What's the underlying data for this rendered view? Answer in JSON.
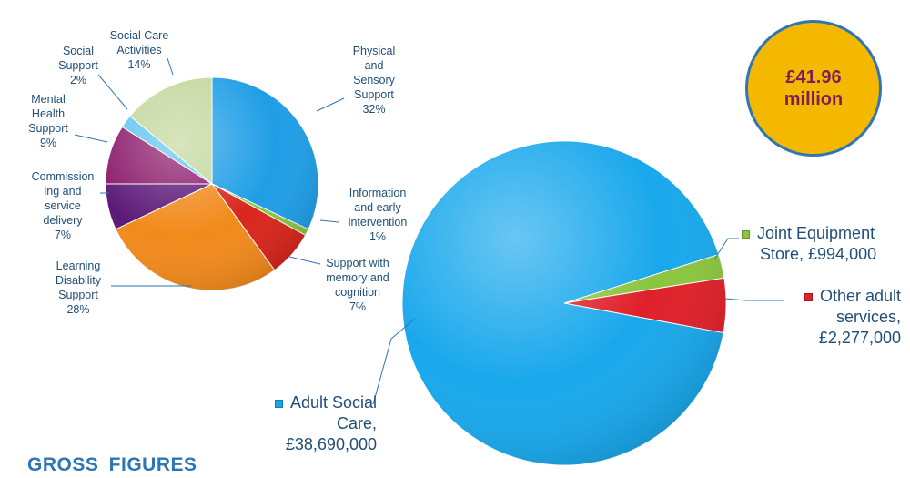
{
  "total": {
    "amount": "£41.96",
    "unit": "million"
  },
  "footer_title": "GROSS  FIGURES",
  "chart_data": [
    {
      "type": "pie",
      "slices": [
        {
          "label": [
            "Physical",
            "and",
            "Sensory",
            "Support",
            "32%"
          ],
          "value": 32,
          "color": "#1f9ee6"
        },
        {
          "label": [
            "Information",
            "and early",
            "intervention",
            "1%"
          ],
          "value": 1,
          "color": "#8bc53f"
        },
        {
          "label": [
            "Support with",
            "memory and",
            "cognition",
            "7%"
          ],
          "value": 7,
          "color": "#d9261c"
        },
        {
          "label": [
            "Learning",
            "Disability",
            "Support",
            "28%"
          ],
          "value": 28,
          "color": "#f28a1c"
        },
        {
          "label": [
            "Commission",
            "ing and",
            "service",
            "delivery",
            "7%"
          ],
          "value": 7,
          "color": "#5c1a78"
        },
        {
          "label": [
            "Mental",
            "Health",
            "Support",
            "9%"
          ],
          "value": 9,
          "color": "#8b1a6b"
        },
        {
          "label": [
            "Social",
            "Support",
            "2%"
          ],
          "value": 2,
          "color": "#5fc4f0"
        },
        {
          "label": [
            "Social Care",
            "Activities",
            "14%"
          ],
          "value": 14,
          "color": "#c3d69b"
        }
      ]
    },
    {
      "type": "pie",
      "slices": [
        {
          "label": [
            "Joint Equipment",
            "Store, £994,000"
          ],
          "value": 994000,
          "color": "#8bc53f"
        },
        {
          "label": [
            "Other adult",
            "services,",
            "£2,277,000"
          ],
          "value": 2277000,
          "color": "#e0202a"
        },
        {
          "label": [
            "Adult Social",
            "Care,",
            "£38,690,000"
          ],
          "value": 38690000,
          "color": "#19a8ec"
        }
      ]
    }
  ]
}
